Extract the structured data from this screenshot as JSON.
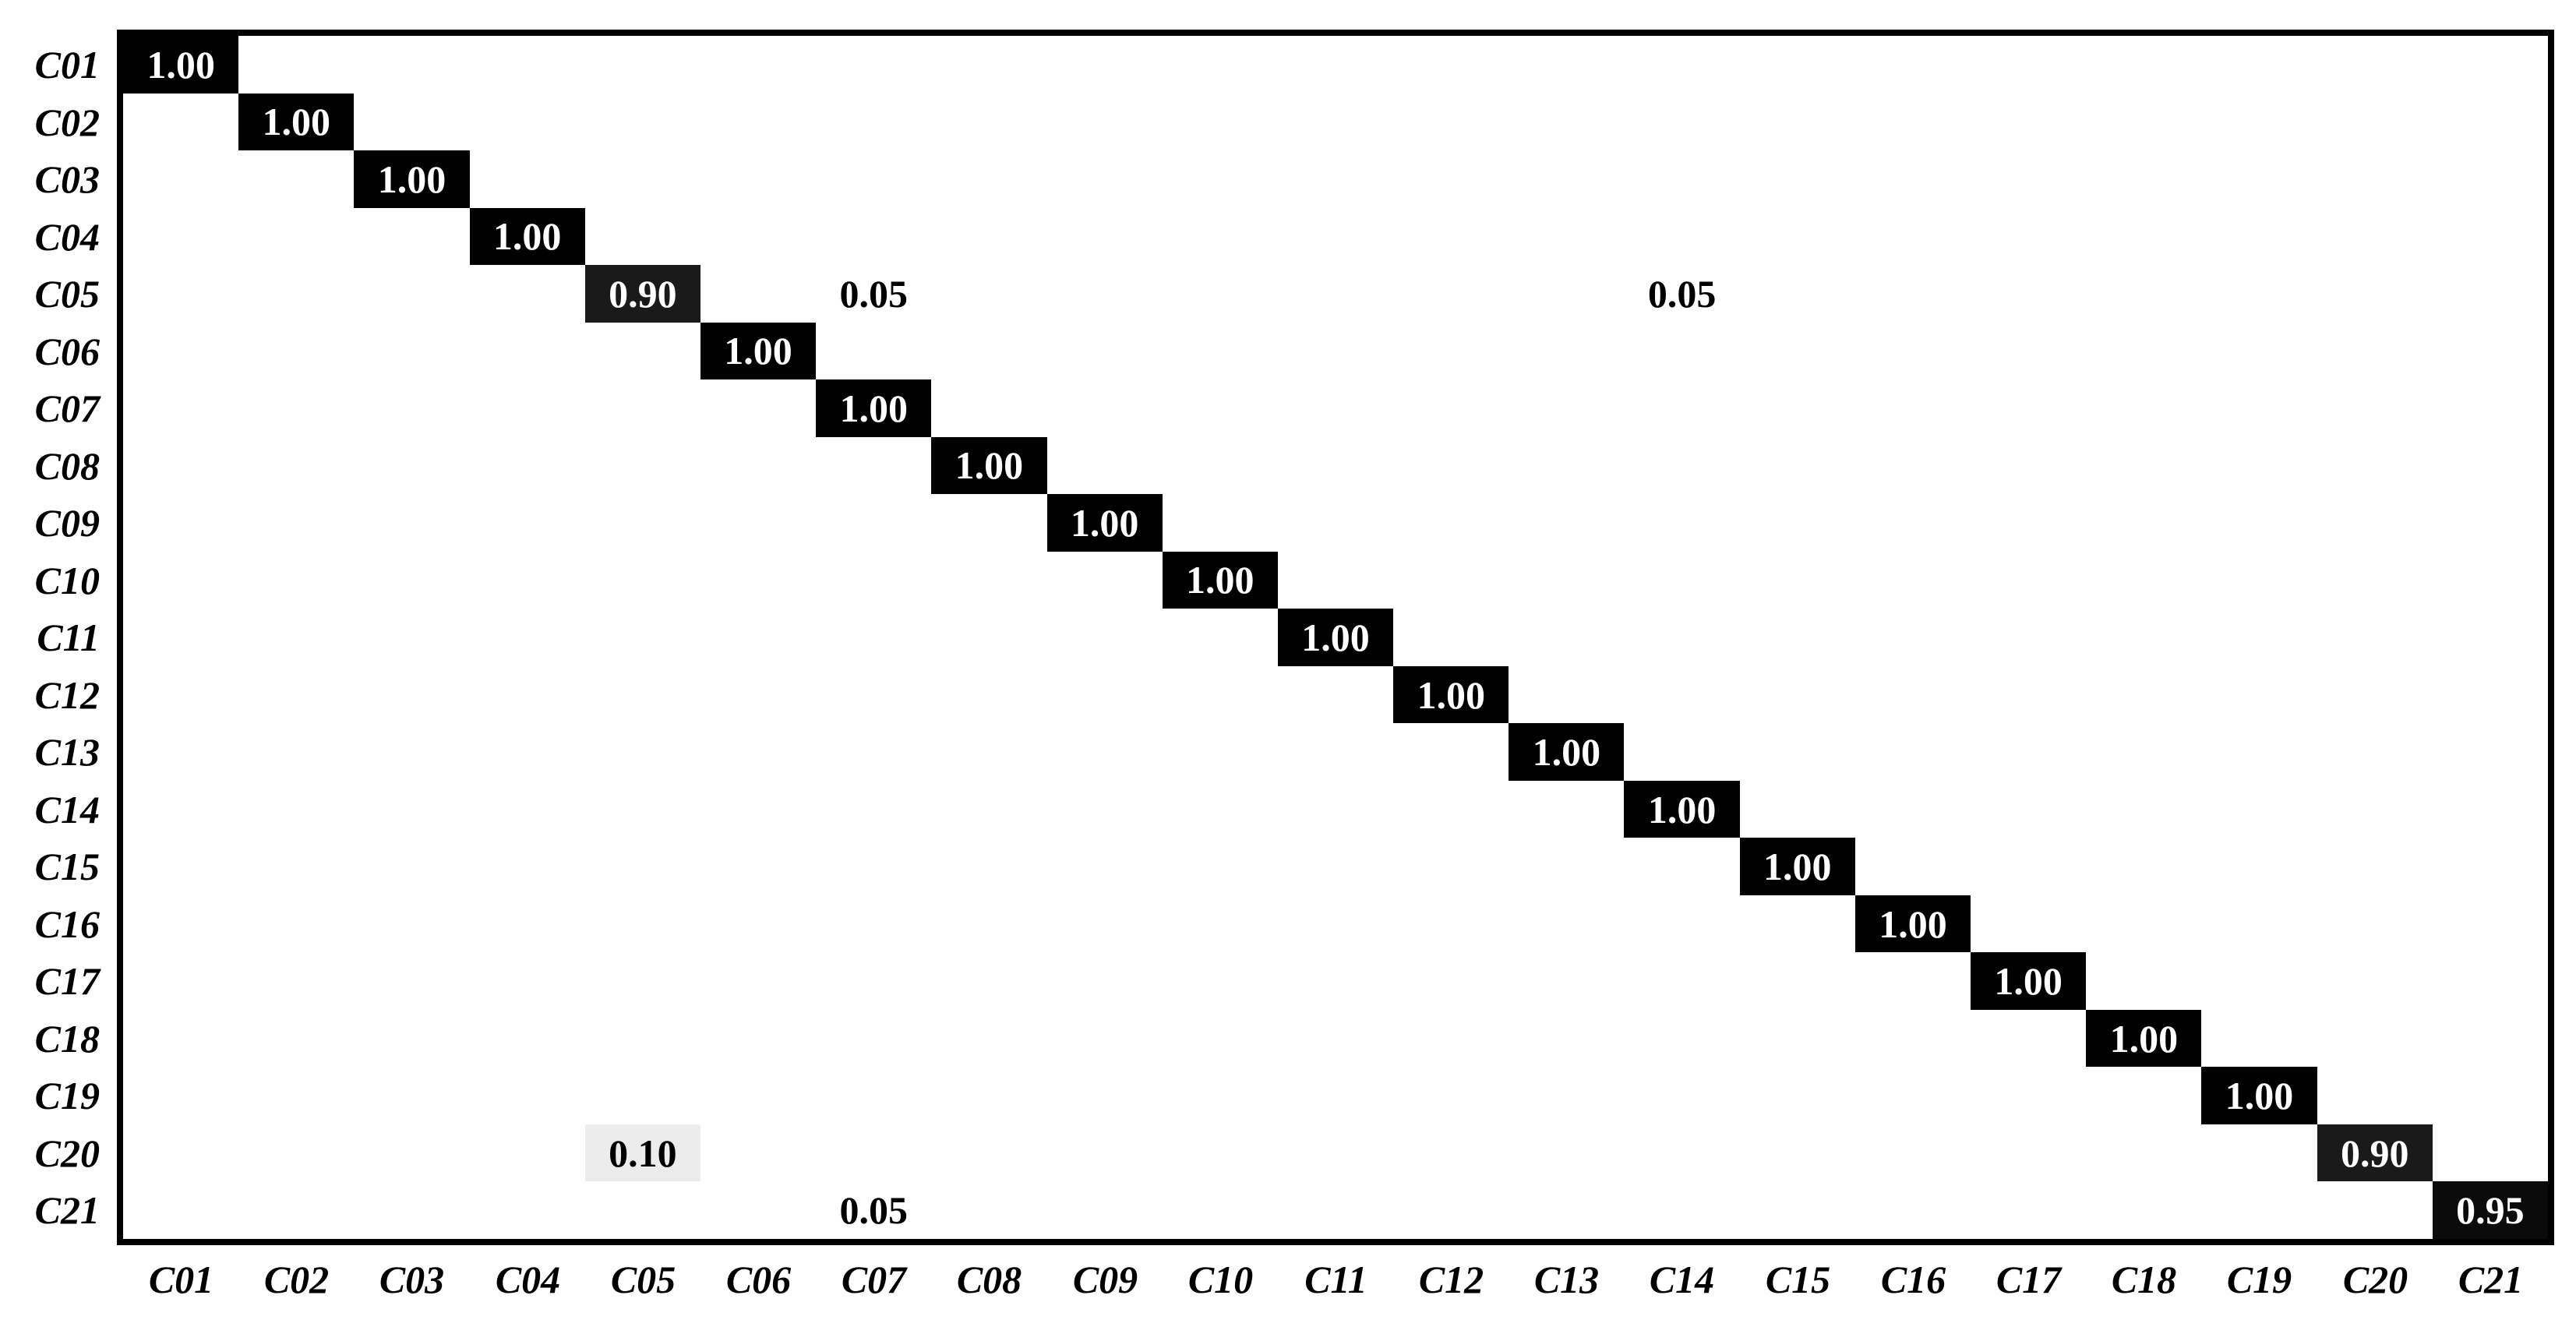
{
  "chart_data": {
    "type": "heatmap",
    "subtype": "normalized-confusion-matrix",
    "title": "",
    "xlabel": "",
    "ylabel": "",
    "x_categories": [
      "C01",
      "C02",
      "C03",
      "C04",
      "C05",
      "C06",
      "C07",
      "C08",
      "C09",
      "C10",
      "C11",
      "C12",
      "C13",
      "C14",
      "C15",
      "C16",
      "C17",
      "C18",
      "C19",
      "C20",
      "C21"
    ],
    "y_categories": [
      "C01",
      "C02",
      "C03",
      "C04",
      "C05",
      "C06",
      "C07",
      "C08",
      "C09",
      "C10",
      "C11",
      "C12",
      "C13",
      "C14",
      "C15",
      "C16",
      "C17",
      "C18",
      "C19",
      "C20",
      "C21"
    ],
    "default_value": 0,
    "value_format": "two-decimals",
    "cells": [
      {
        "row": "C01",
        "col": "C01",
        "value": 1.0
      },
      {
        "row": "C02",
        "col": "C02",
        "value": 1.0
      },
      {
        "row": "C03",
        "col": "C03",
        "value": 1.0
      },
      {
        "row": "C04",
        "col": "C04",
        "value": 1.0
      },
      {
        "row": "C05",
        "col": "C05",
        "value": 0.9
      },
      {
        "row": "C05",
        "col": "C07",
        "value": 0.05
      },
      {
        "row": "C05",
        "col": "C14",
        "value": 0.05
      },
      {
        "row": "C06",
        "col": "C06",
        "value": 1.0
      },
      {
        "row": "C07",
        "col": "C07",
        "value": 1.0
      },
      {
        "row": "C08",
        "col": "C08",
        "value": 1.0
      },
      {
        "row": "C09",
        "col": "C09",
        "value": 1.0
      },
      {
        "row": "C10",
        "col": "C10",
        "value": 1.0
      },
      {
        "row": "C11",
        "col": "C11",
        "value": 1.0
      },
      {
        "row": "C12",
        "col": "C12",
        "value": 1.0
      },
      {
        "row": "C13",
        "col": "C13",
        "value": 1.0
      },
      {
        "row": "C14",
        "col": "C14",
        "value": 1.0
      },
      {
        "row": "C15",
        "col": "C15",
        "value": 1.0
      },
      {
        "row": "C16",
        "col": "C16",
        "value": 1.0
      },
      {
        "row": "C17",
        "col": "C17",
        "value": 1.0
      },
      {
        "row": "C18",
        "col": "C18",
        "value": 1.0
      },
      {
        "row": "C19",
        "col": "C19",
        "value": 1.0
      },
      {
        "row": "C20",
        "col": "C05",
        "value": 0.1
      },
      {
        "row": "C20",
        "col": "C20",
        "value": 0.9
      },
      {
        "row": "C21",
        "col": "C07",
        "value": 0.05
      },
      {
        "row": "C21",
        "col": "C21",
        "value": 0.95
      }
    ],
    "colormap": "Greys white-to-black",
    "value_styles": {
      "1.00": {
        "bg": "#000000",
        "text": "#ffffff"
      },
      "0.95": {
        "bg": "#0b0b0b",
        "text": "#ffffff"
      },
      "0.90": {
        "bg": "#1a1a1a",
        "text": "#ffffff"
      },
      "0.10": {
        "bg": "#ececec",
        "text": "#000000"
      },
      "0.05": {
        "bg": "#ffffff",
        "text": "#000000"
      }
    },
    "layout": {
      "grid": false,
      "legend": false,
      "plot_border_px": 8,
      "border_color": "#000000",
      "background": "#ffffff",
      "x_tick_position": "bottom",
      "y_tick_position": "left"
    }
  }
}
